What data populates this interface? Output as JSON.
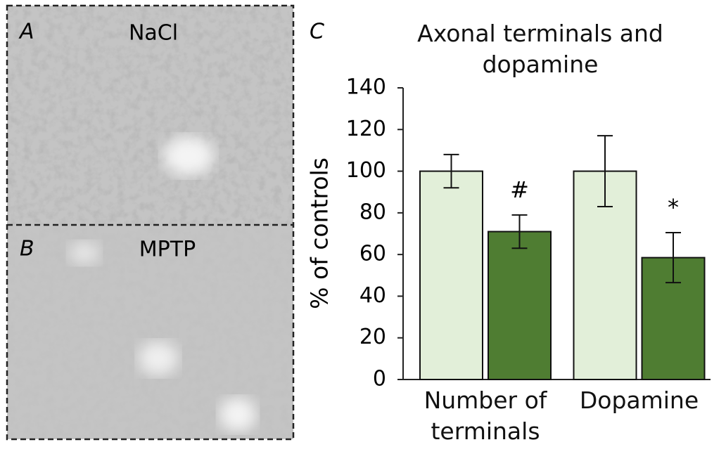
{
  "panels": [
    {
      "label": "A",
      "title": "NaCl"
    },
    {
      "label": "B",
      "title": "MPTP"
    }
  ],
  "chart_data": {
    "type": "bar",
    "panel_label": "C",
    "title": "Axonal terminals and dopamine",
    "ylabel": "% of controls",
    "categories": [
      "Number of terminals",
      "Dopamine"
    ],
    "series": [
      {
        "color": "#e2efd9",
        "values": [
          100,
          100
        ],
        "errors": [
          8,
          17
        ]
      },
      {
        "color": "#4f7d32",
        "values": [
          71,
          58.5
        ],
        "errors": [
          8,
          12
        ],
        "markers": [
          "#",
          "*"
        ]
      }
    ],
    "ylim": [
      0,
      140
    ],
    "yticks": [
      0,
      20,
      40,
      60,
      80,
      100,
      120,
      140
    ]
  }
}
